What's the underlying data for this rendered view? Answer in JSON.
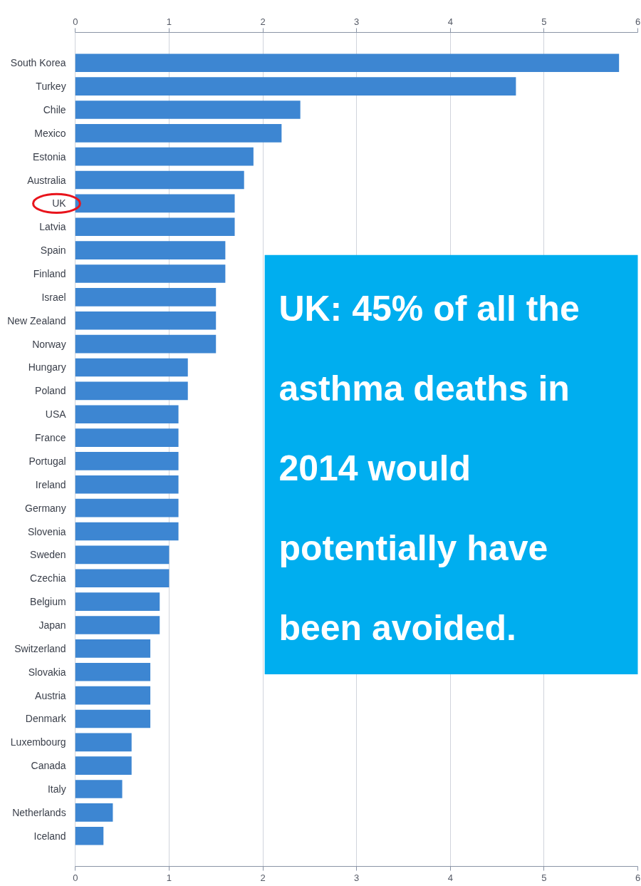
{
  "chart_data": {
    "type": "bar",
    "orientation": "horizontal",
    "categories": [
      "South Korea",
      "Turkey",
      "Chile",
      "Mexico",
      "Estonia",
      "Australia",
      "UK",
      "Latvia",
      "Spain",
      "Finland",
      "Israel",
      "New Zealand",
      "Norway",
      "Hungary",
      "Poland",
      "USA",
      "France",
      "Portugal",
      "Ireland",
      "Germany",
      "Slovenia",
      "Sweden",
      "Czechia",
      "Belgium",
      "Japan",
      "Switzerland",
      "Slovakia",
      "Austria",
      "Denmark",
      "Luxembourg",
      "Canada",
      "Italy",
      "Netherlands",
      "Iceland"
    ],
    "values": [
      5.8,
      4.7,
      2.4,
      2.2,
      1.9,
      1.8,
      1.7,
      1.7,
      1.6,
      1.6,
      1.5,
      1.5,
      1.5,
      1.2,
      1.2,
      1.1,
      1.1,
      1.1,
      1.1,
      1.1,
      1.1,
      1.0,
      1.0,
      0.9,
      0.9,
      0.8,
      0.8,
      0.8,
      0.8,
      0.6,
      0.6,
      0.5,
      0.4,
      0.3
    ],
    "color": "#3d86d2",
    "xlim": [
      0,
      6
    ],
    "xticks": [
      0,
      1,
      2,
      3,
      4,
      5,
      6
    ],
    "x2lim": [
      0,
      6
    ],
    "x2ticks": [
      0,
      1,
      2,
      3,
      4,
      5,
      6
    ],
    "grid": "x",
    "annotations": [
      "UK: 45% of all the asthma deaths in 2014 would potentially have been avoided."
    ]
  }
}
